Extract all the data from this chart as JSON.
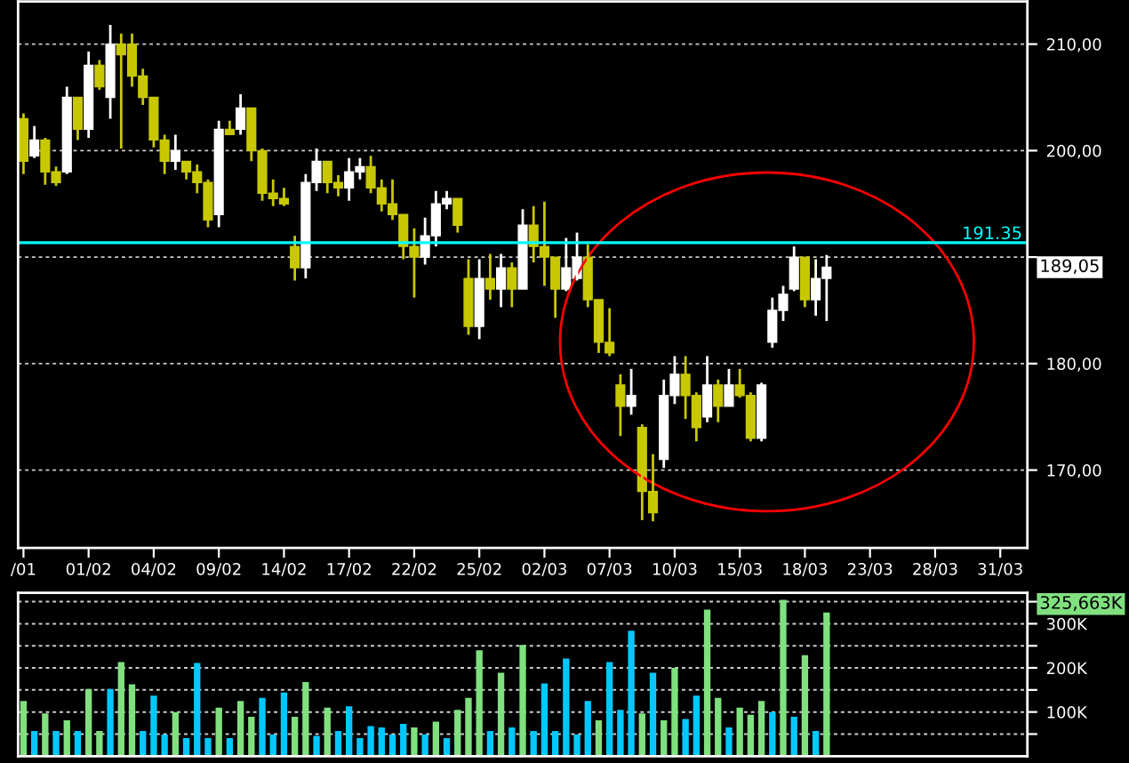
{
  "chart_data": [
    {
      "type": "candlestick",
      "categories": [
        "/01",
        null,
        null,
        null,
        null,
        null,
        "01/02",
        null,
        null,
        null,
        null,
        null,
        "04/02",
        null,
        null,
        null,
        null,
        null,
        "09/02",
        null,
        null,
        null,
        null,
        null,
        "14/02",
        null,
        null,
        null,
        null,
        null,
        "17/02",
        null,
        null,
        null,
        null,
        null,
        "22/02",
        null,
        null,
        null,
        null,
        null,
        "25/02",
        null,
        null,
        null,
        null,
        null,
        "02/03",
        null,
        null,
        null,
        null,
        null,
        "07/03",
        null,
        null,
        null,
        null,
        null,
        "10/03",
        null,
        null,
        null,
        null,
        null,
        "15/03",
        null,
        null,
        null,
        null,
        null,
        "18/03",
        null,
        null,
        null,
        null,
        null,
        "23/03",
        null,
        null,
        null,
        null,
        null,
        "28/03",
        null,
        null,
        null,
        null,
        null,
        "31/03",
        null,
        null
      ],
      "ohlc": [
        [
          203,
          203.5,
          197.8,
          199
        ],
        [
          199.5,
          202.3,
          199.3,
          201
        ],
        [
          201,
          201.2,
          196.8,
          198
        ],
        [
          198,
          198.5,
          196.7,
          197
        ],
        [
          198,
          206,
          197.8,
          205
        ],
        [
          205,
          205,
          201,
          202
        ],
        [
          202,
          209.3,
          201.2,
          208
        ],
        [
          208,
          208.5,
          205.7,
          206
        ],
        [
          205,
          211.8,
          203,
          210
        ],
        [
          210,
          211,
          200.2,
          209
        ],
        [
          210,
          211,
          206,
          207
        ],
        [
          207,
          207.7,
          204.3,
          205
        ],
        [
          205,
          205,
          200.3,
          201
        ],
        [
          201,
          201.5,
          197.8,
          199
        ],
        [
          199,
          201.5,
          198.2,
          200
        ],
        [
          199,
          199,
          197.3,
          198
        ],
        [
          198,
          198.7,
          196,
          197
        ],
        [
          197,
          197.3,
          192.8,
          193.5
        ],
        [
          194,
          202.8,
          192.8,
          202
        ],
        [
          202,
          202.8,
          201.5,
          201.5
        ],
        [
          202,
          205.3,
          201.5,
          204
        ],
        [
          204,
          204,
          199,
          200
        ],
        [
          200,
          200.2,
          195.3,
          196
        ],
        [
          196,
          197.3,
          194.8,
          195.5
        ],
        [
          195.5,
          196.5,
          194.8,
          195
        ],
        [
          191,
          192,
          187.8,
          189
        ],
        [
          189,
          197.8,
          188,
          197
        ],
        [
          197,
          200.2,
          196.2,
          199
        ],
        [
          199,
          199,
          196,
          197
        ],
        [
          197,
          197.7,
          195.7,
          196.5
        ],
        [
          196.5,
          199.3,
          195.3,
          198
        ],
        [
          198,
          199.3,
          197.3,
          198.5
        ],
        [
          198.5,
          199.5,
          196,
          196.5
        ],
        [
          196.5,
          197.3,
          194.3,
          195
        ],
        [
          195,
          197.3,
          193.5,
          194
        ],
        [
          194,
          194,
          189.8,
          191
        ],
        [
          191,
          192.7,
          186.2,
          190
        ],
        [
          190,
          193.7,
          189.3,
          192
        ],
        [
          192,
          196.2,
          191,
          195
        ],
        [
          195,
          196.2,
          194.5,
          195.5
        ],
        [
          195.5,
          195.5,
          192.3,
          193
        ],
        [
          188,
          189.8,
          182.7,
          183.5
        ],
        [
          183.5,
          189.8,
          182.3,
          188
        ],
        [
          188,
          190.3,
          186,
          187
        ],
        [
          187,
          190.3,
          185.3,
          189
        ],
        [
          189,
          189.5,
          185.3,
          187
        ],
        [
          187,
          194.5,
          187,
          193
        ],
        [
          193,
          194.8,
          189.5,
          191
        ],
        [
          191,
          195.2,
          187.3,
          190
        ],
        [
          190,
          190,
          184.3,
          187
        ],
        [
          187,
          191.8,
          186.8,
          189
        ],
        [
          188,
          192.3,
          187.8,
          190
        ],
        [
          190,
          191.2,
          185.3,
          186
        ],
        [
          186,
          186,
          181,
          182
        ],
        [
          182,
          185.2,
          180.7,
          181
        ],
        [
          178,
          179,
          173.2,
          176
        ],
        [
          176,
          179.5,
          175.2,
          177
        ],
        [
          174,
          174.3,
          165.3,
          168
        ],
        [
          168,
          171.5,
          165.2,
          166
        ],
        [
          171,
          178.5,
          170.2,
          177
        ],
        [
          177,
          180.7,
          176.2,
          179
        ],
        [
          179,
          180.7,
          174.8,
          177
        ],
        [
          177,
          177.3,
          172.7,
          174
        ],
        [
          175,
          180.7,
          174.5,
          178
        ],
        [
          178,
          178.5,
          174.5,
          176
        ],
        [
          176,
          179.5,
          176,
          178
        ],
        [
          178,
          179.5,
          176.8,
          177
        ],
        [
          177,
          177.3,
          172.7,
          173
        ],
        [
          173,
          178.2,
          172.7,
          178
        ],
        [
          182,
          186.2,
          181.5,
          185
        ],
        [
          185,
          187.3,
          184,
          186.5
        ],
        [
          187,
          191,
          186.8,
          190
        ],
        [
          190,
          190,
          185.3,
          186
        ],
        [
          186,
          189.8,
          184.5,
          188
        ],
        [
          188,
          190.2,
          184,
          189.05
        ],
        null,
        null,
        null,
        null,
        null,
        null,
        null,
        null,
        null,
        null,
        null,
        null,
        null,
        null,
        null,
        null,
        null,
        null
      ],
      "colors": [
        "#c8c800",
        "#ffffff",
        "#c8c800",
        "#c8c800",
        "#ffffff",
        "#c8c800",
        "#ffffff",
        "#c8c800",
        "#ffffff",
        "#c8c800",
        "#c8c800",
        "#c8c800",
        "#c8c800",
        "#c8c800",
        "#ffffff",
        "#c8c800",
        "#c8c800",
        "#c8c800",
        "#ffffff",
        "#c8c800",
        "#ffffff",
        "#c8c800",
        "#c8c800",
        "#c8c800",
        "#c8c800",
        "#c8c800",
        "#ffffff",
        "#ffffff",
        "#c8c800",
        "#c8c800",
        "#ffffff",
        "#ffffff",
        "#c8c800",
        "#c8c800",
        "#c8c800",
        "#c8c800",
        "#c8c800",
        "#ffffff",
        "#ffffff",
        "#ffffff",
        "#c8c800",
        "#c8c800",
        "#ffffff",
        "#c8c800",
        "#ffffff",
        "#c8c800",
        "#ffffff",
        "#c8c800",
        "#c8c800",
        "#c8c800",
        "#ffffff",
        "#ffffff",
        "#c8c800",
        "#c8c800",
        "#c8c800",
        "#c8c800",
        "#ffffff",
        "#c8c800",
        "#c8c800",
        "#ffffff",
        "#ffffff",
        "#c8c800",
        "#c8c800",
        "#ffffff",
        "#c8c800",
        "#ffffff",
        "#c8c800",
        "#c8c800",
        "#ffffff",
        "#ffffff",
        "#ffffff",
        "#ffffff",
        "#c8c800",
        "#ffffff",
        "#ffffff",
        null,
        null,
        null,
        null,
        null,
        null,
        null,
        null,
        null,
        null,
        null,
        null,
        null,
        null,
        null,
        null,
        null,
        null
      ],
      "ylim": [
        162.7,
        214
      ],
      "yticks": [
        {
          "value": 170,
          "label": "170,00"
        },
        {
          "value": 180,
          "label": "180,00"
        },
        {
          "value": 190,
          "label": null
        },
        {
          "value": 200,
          "label": "200,00"
        },
        {
          "value": 210,
          "label": "210,00"
        }
      ],
      "grid": "y",
      "ref_lines": [
        {
          "axis": "y",
          "value": 191.35,
          "label": "191.35",
          "color": "#00ffff"
        }
      ],
      "annotations": [
        "189,05"
      ]
    },
    {
      "type": "bar",
      "categories": [
        null,
        null,
        null,
        null,
        null,
        null,
        null,
        null,
        null,
        null,
        null,
        null,
        null,
        null,
        null,
        null,
        null,
        null,
        null,
        null,
        null,
        null,
        null,
        null,
        null,
        null,
        null,
        null,
        null,
        null,
        null,
        null,
        null,
        null,
        null,
        null,
        null,
        null,
        null,
        null,
        null,
        null,
        null,
        null,
        null,
        null,
        null,
        null,
        null,
        null,
        null,
        null,
        null,
        null,
        null,
        null,
        null,
        null,
        null,
        null,
        null,
        null,
        null,
        null,
        null,
        null,
        null,
        null,
        null,
        null,
        null,
        null,
        null,
        null,
        null,
        null,
        null,
        null,
        null,
        null,
        null,
        null,
        null,
        null,
        null,
        null,
        null,
        null,
        null,
        null,
        null,
        null,
        null
      ],
      "values": [
        125000,
        57000,
        97000,
        57000,
        81000,
        57000,
        152000,
        57000,
        152000,
        213000,
        163000,
        57000,
        137000,
        49000,
        100000,
        41000,
        211000,
        41000,
        110000,
        41000,
        125000,
        89000,
        132000,
        49000,
        144000,
        89000,
        168000,
        46000,
        110000,
        57000,
        113000,
        41000,
        68000,
        65000,
        49000,
        73000,
        65000,
        49000,
        78000,
        41000,
        105000,
        132000,
        240000,
        57000,
        189000,
        65000,
        252000,
        57000,
        165000,
        57000,
        221000,
        49000,
        125000,
        81000,
        213000,
        105000,
        284000,
        97000,
        189000,
        81000,
        200000,
        84000,
        137000,
        332000,
        132000,
        65000,
        110000,
        94000,
        125000,
        100000,
        354000,
        89000,
        229000,
        57000,
        325663,
        null,
        null,
        null,
        null,
        null,
        null,
        null,
        null,
        null,
        null,
        null,
        null,
        null,
        null,
        null,
        null,
        null,
        null
      ],
      "colors": [
        "#80e080",
        "#00c8ff",
        "#80e080",
        "#00c8ff",
        "#80e080",
        "#00c8ff",
        "#80e080",
        "#80e080",
        "#00c8ff",
        "#80e080",
        "#80e080",
        "#00c8ff",
        "#00c8ff",
        "#00c8ff",
        "#80e080",
        "#00c8ff",
        "#00c8ff",
        "#00c8ff",
        "#80e080",
        "#00c8ff",
        "#80e080",
        "#80e080",
        "#00c8ff",
        "#00c8ff",
        "#00c8ff",
        "#80e080",
        "#80e080",
        "#00c8ff",
        "#80e080",
        "#00c8ff",
        "#00c8ff",
        "#00c8ff",
        "#00c8ff",
        "#00c8ff",
        "#00c8ff",
        "#00c8ff",
        "#80e080",
        "#00c8ff",
        "#80e080",
        "#00c8ff",
        "#80e080",
        "#80e080",
        "#80e080",
        "#00c8ff",
        "#80e080",
        "#00c8ff",
        "#80e080",
        "#00c8ff",
        "#00c8ff",
        "#00c8ff",
        "#00c8ff",
        "#00c8ff",
        "#00c8ff",
        "#80e080",
        "#00c8ff",
        "#00c8ff",
        "#00c8ff",
        "#80e080",
        "#00c8ff",
        "#80e080",
        "#80e080",
        "#00c8ff",
        "#00c8ff",
        "#80e080",
        "#80e080",
        "#00c8ff",
        "#80e080",
        "#80e080",
        "#80e080",
        "#00c8ff",
        "#80e080",
        "#00c8ff",
        "#80e080",
        "#00c8ff",
        "#80e080",
        null,
        null,
        null,
        null,
        null,
        null,
        null,
        null,
        null,
        null,
        null,
        null,
        null,
        null,
        null,
        null,
        null,
        null
      ],
      "ylim": [
        0,
        370000
      ],
      "yticks": [
        {
          "value": 50000,
          "label": null
        },
        {
          "value": 100000,
          "label": "100K"
        },
        {
          "value": 150000,
          "label": null
        },
        {
          "value": 200000,
          "label": "200K"
        },
        {
          "value": 250000,
          "label": null
        },
        {
          "value": 300000,
          "label": "300K"
        },
        {
          "value": 350000,
          "label": null
        }
      ],
      "grid": "y",
      "tick_labels": "y",
      "annotations": [
        "325,663K"
      ]
    }
  ]
}
